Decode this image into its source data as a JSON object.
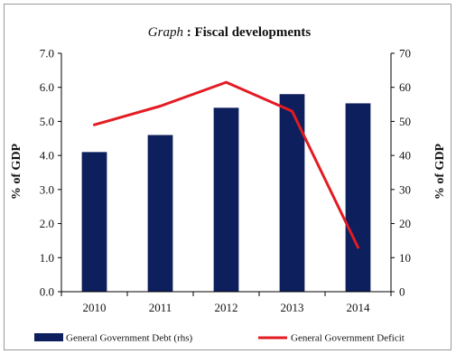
{
  "chart_data": {
    "type": "bar",
    "title_prefix": "Graph",
    "title": " : Fiscal developments",
    "categories": [
      "2010",
      "2011",
      "2012",
      "2013",
      "2014"
    ],
    "series": [
      {
        "name": "General Government Debt (rhs)",
        "kind": "bar",
        "axis": "right",
        "color": "#0d1f5c",
        "values": [
          41,
          46,
          54,
          58,
          55.3
        ]
      },
      {
        "name": "General Government Deficit",
        "kind": "line",
        "axis": "left",
        "color": "#e31b23",
        "values": [
          4.9,
          5.45,
          6.15,
          5.3,
          1.3
        ]
      }
    ],
    "y_left": {
      "label": "% of GDP",
      "lim": [
        0,
        7
      ],
      "ticks": [
        "0.0",
        "1.0",
        "2.0",
        "3.0",
        "4.0",
        "5.0",
        "6.0",
        "7.0"
      ]
    },
    "y_right": {
      "label": "% of GDP",
      "lim": [
        0,
        70
      ],
      "ticks": [
        "0",
        "10",
        "20",
        "30",
        "40",
        "50",
        "60",
        "70"
      ]
    },
    "grid": false,
    "legend": "bottom"
  }
}
